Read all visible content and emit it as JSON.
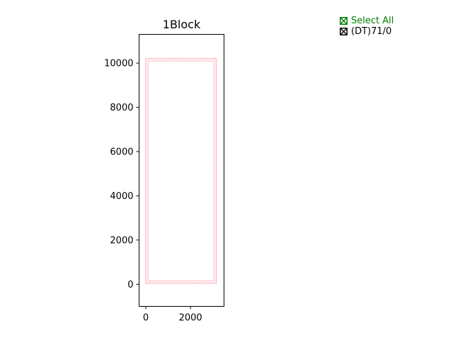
{
  "chart_data": {
    "type": "line",
    "title": "1Block",
    "xlabel": "",
    "ylabel": "",
    "xlim": [
      -300,
      3500
    ],
    "ylim": [
      -1000,
      11300
    ],
    "xticks": [
      0,
      2000
    ],
    "yticks": [
      0,
      2000,
      4000,
      6000,
      8000,
      10000
    ],
    "xtick_labels": [
      "0",
      "2000"
    ],
    "ytick_labels": [
      "0",
      "2000",
      "4000",
      "6000",
      "8000",
      "10000"
    ],
    "grid": false,
    "legend_position": "top-right, outside plot",
    "series": [
      {
        "name": "(DT)71/0",
        "color": "#ffb6c1",
        "outer": [
          [
            0,
            50
          ],
          [
            3150,
            50
          ],
          [
            3150,
            10200
          ],
          [
            0,
            10200
          ],
          [
            0,
            50
          ]
        ],
        "inner": [
          [
            100,
            150
          ],
          [
            3050,
            150
          ],
          [
            3050,
            10100
          ],
          [
            100,
            10100
          ],
          [
            100,
            150
          ]
        ]
      }
    ]
  },
  "legend": {
    "items": [
      {
        "label": "Select All",
        "color": "#008000",
        "checked": true,
        "icon": "checked-box-icon"
      },
      {
        "label": "(DT)71/0",
        "color": "#000000",
        "checked": true,
        "icon": "checked-box-icon"
      }
    ]
  }
}
